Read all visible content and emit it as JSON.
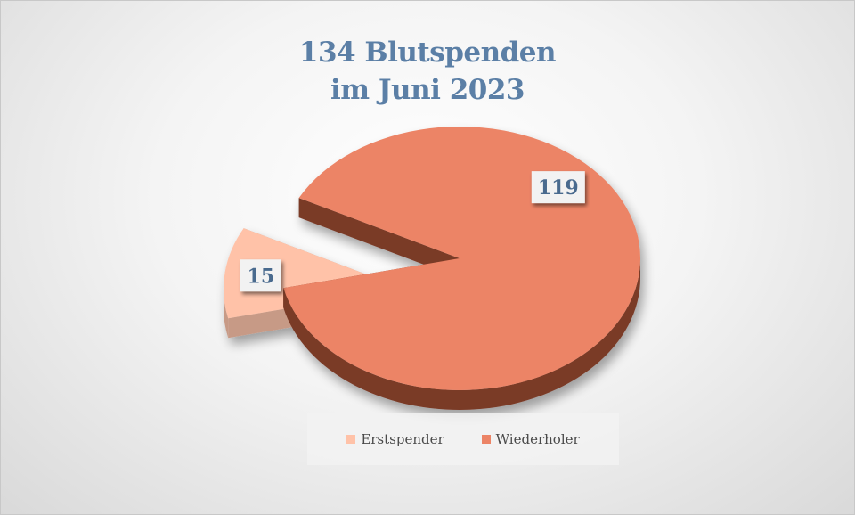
{
  "chart_data": {
    "type": "pie",
    "title_lines": [
      "134 Blutspenden",
      "im Juni 2023"
    ],
    "slices": [
      {
        "label": "Erstspender",
        "value": 15,
        "color": "#ffc2a8",
        "side_color": "#c79a86"
      },
      {
        "label": "Wiederholer",
        "value": 119,
        "color": "#ec8466",
        "side_color": "#7a3a28"
      }
    ],
    "legend": [
      "Erstspender",
      "Wiederholer"
    ],
    "legend_position": "bottom",
    "style": "3d-exploded"
  }
}
